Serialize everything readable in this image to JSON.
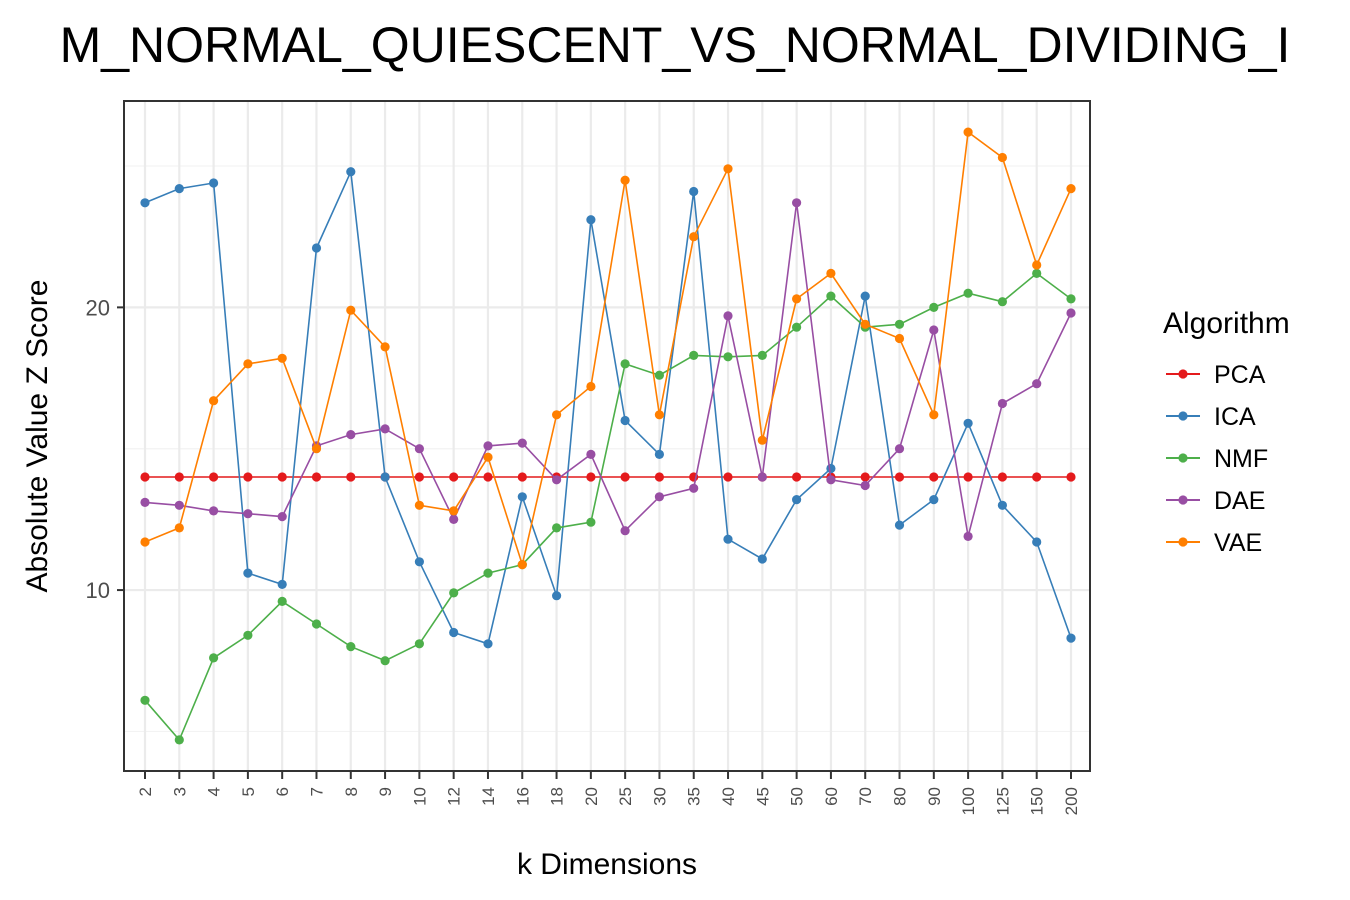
{
  "chart_data": {
    "type": "line",
    "title": "M_NORMAL_QUIESCENT_VS_NORMAL_DIVIDING_I",
    "xlabel": "k Dimensions",
    "ylabel": "Absolute Value Z Score",
    "categories": [
      "2",
      "3",
      "4",
      "5",
      "6",
      "7",
      "8",
      "9",
      "10",
      "12",
      "14",
      "16",
      "18",
      "20",
      "25",
      "30",
      "35",
      "40",
      "45",
      "50",
      "60",
      "70",
      "80",
      "90",
      "100",
      "125",
      "150",
      "200"
    ],
    "ylim": [
      3.6,
      27.3
    ],
    "y_ticks": [
      10,
      20
    ],
    "y_tick_labels": [
      "10",
      "20"
    ],
    "y_minor_ticks": [
      5,
      15,
      25
    ],
    "grid": true,
    "legend": {
      "title": "Algorithm",
      "position": "right"
    },
    "series": [
      {
        "name": "PCA",
        "color": "#e41a1c",
        "values": [
          14,
          14,
          14,
          14,
          14,
          14,
          14,
          14,
          14,
          14,
          14,
          14,
          14,
          14,
          14,
          14,
          14,
          14,
          14,
          14,
          14,
          14,
          14,
          14,
          14,
          14,
          14,
          14
        ]
      },
      {
        "name": "ICA",
        "color": "#377eb8",
        "values": [
          23.7,
          24.2,
          24.4,
          10.6,
          10.2,
          22.1,
          24.8,
          14.0,
          11.0,
          8.5,
          8.1,
          13.3,
          9.8,
          23.1,
          16.0,
          14.8,
          24.1,
          11.8,
          11.1,
          13.2,
          14.3,
          20.4,
          12.3,
          13.2,
          15.9,
          13.0,
          11.7,
          8.3
        ]
      },
      {
        "name": "NMF",
        "color": "#4daf4a",
        "values": [
          6.1,
          4.7,
          7.6,
          8.4,
          9.6,
          8.8,
          8.0,
          7.5,
          8.1,
          9.9,
          10.6,
          10.9,
          12.2,
          12.4,
          18.0,
          17.6,
          18.3,
          18.25,
          18.3,
          19.3,
          20.4,
          19.3,
          19.4,
          20.0,
          20.5,
          20.2,
          21.2,
          20.3
        ]
      },
      {
        "name": "DAE",
        "color": "#984ea3",
        "values": [
          13.1,
          13.0,
          12.8,
          12.7,
          12.6,
          15.1,
          15.5,
          15.7,
          15.0,
          12.5,
          15.1,
          15.2,
          13.9,
          14.8,
          12.1,
          13.3,
          13.6,
          19.7,
          14.0,
          23.7,
          13.9,
          13.7,
          15.0,
          19.2,
          11.9,
          16.6,
          17.3,
          19.8
        ]
      },
      {
        "name": "VAE",
        "color": "#ff7f00",
        "values": [
          11.7,
          12.2,
          16.7,
          18.0,
          18.2,
          15.0,
          19.9,
          18.6,
          13.0,
          12.8,
          14.7,
          10.9,
          16.2,
          17.2,
          24.5,
          16.2,
          22.5,
          24.9,
          15.3,
          20.3,
          21.2,
          19.4,
          18.9,
          16.2,
          26.2,
          25.3,
          21.5,
          24.2
        ]
      }
    ]
  }
}
